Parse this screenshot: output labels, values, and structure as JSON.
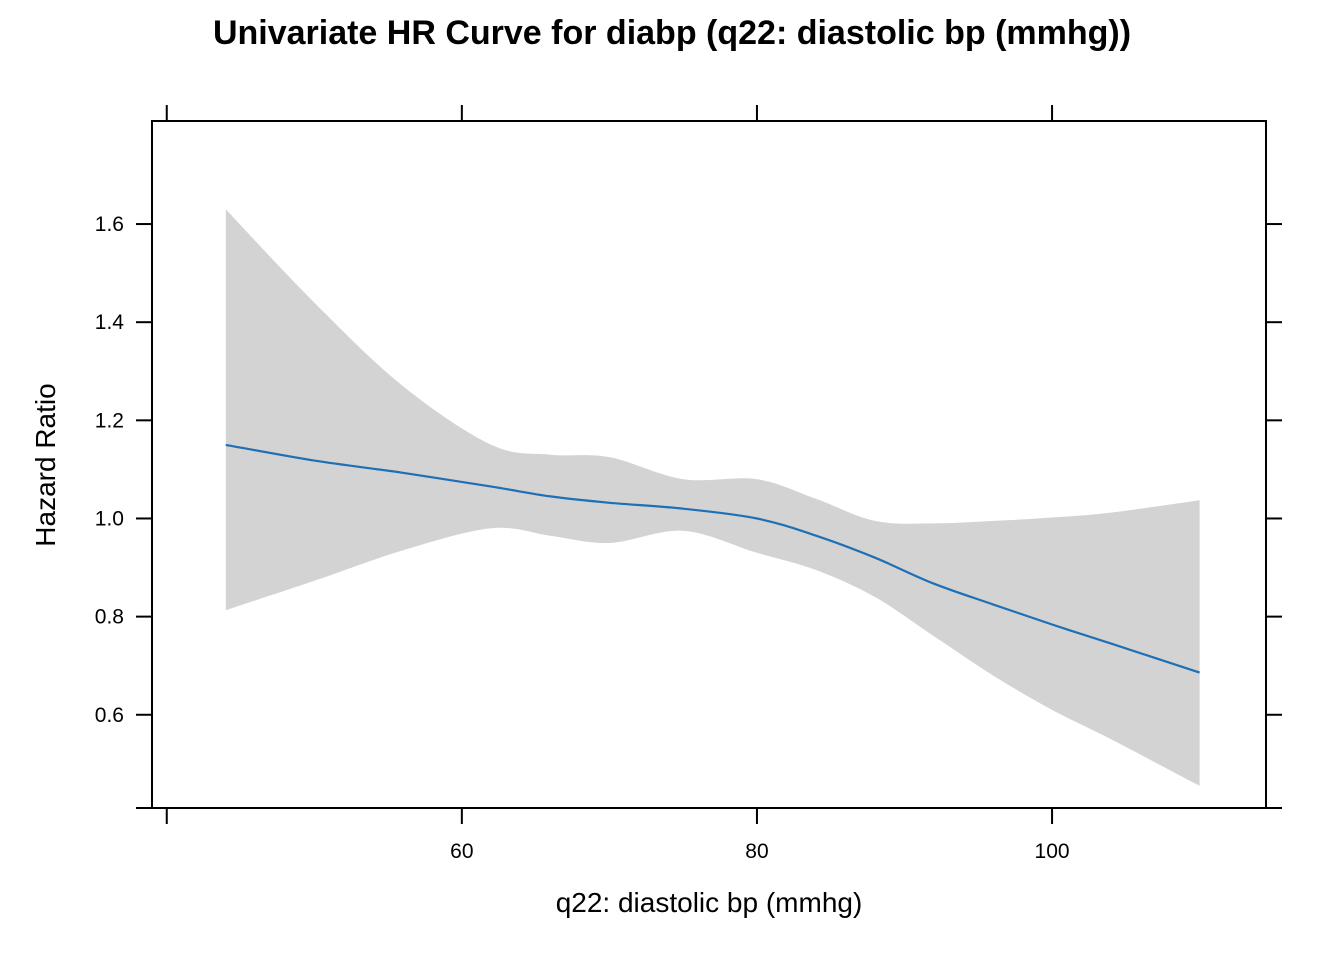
{
  "chart_data": {
    "type": "line",
    "title": "Univariate HR Curve for diabp (q22: diastolic bp (mmhg))",
    "xlabel": "q22: diastolic bp (mmhg)",
    "ylabel": "Hazard Ratio",
    "xlim": [
      39,
      114.5
    ],
    "ylim": [
      0.41,
      1.81
    ],
    "x_ticks": [
      40,
      60,
      80,
      100
    ],
    "x_tick_labels": [
      "",
      "60",
      "80",
      "100"
    ],
    "y_ticks": [
      0.6,
      0.8,
      1.0,
      1.2,
      1.4,
      1.6
    ],
    "y_tick_labels": [
      "0.6",
      "0.8",
      "1.0",
      "1.2",
      "1.4",
      "1.6"
    ],
    "grid": false,
    "legend": "none",
    "colors": {
      "line": "#1f6fb4",
      "band": "#d3d3d3"
    },
    "series": [
      {
        "x": [
          44,
          50,
          56,
          62,
          66,
          70,
          75,
          80,
          84,
          88,
          92,
          96,
          100,
          104,
          110
        ],
        "y": [
          1.15,
          1.118,
          1.093,
          1.065,
          1.045,
          1.032,
          1.02,
          1.0,
          0.965,
          0.92,
          0.867,
          0.825,
          0.784,
          0.745,
          0.686
        ],
        "lower": [
          0.813,
          0.873,
          0.935,
          0.98,
          0.965,
          0.95,
          0.975,
          0.93,
          0.895,
          0.84,
          0.76,
          0.68,
          0.61,
          0.55,
          0.455
        ],
        "upper": [
          1.63,
          1.44,
          1.27,
          1.15,
          1.13,
          1.125,
          1.08,
          1.08,
          1.04,
          0.995,
          0.99,
          0.995,
          1.002,
          1.012,
          1.037
        ]
      }
    ]
  }
}
